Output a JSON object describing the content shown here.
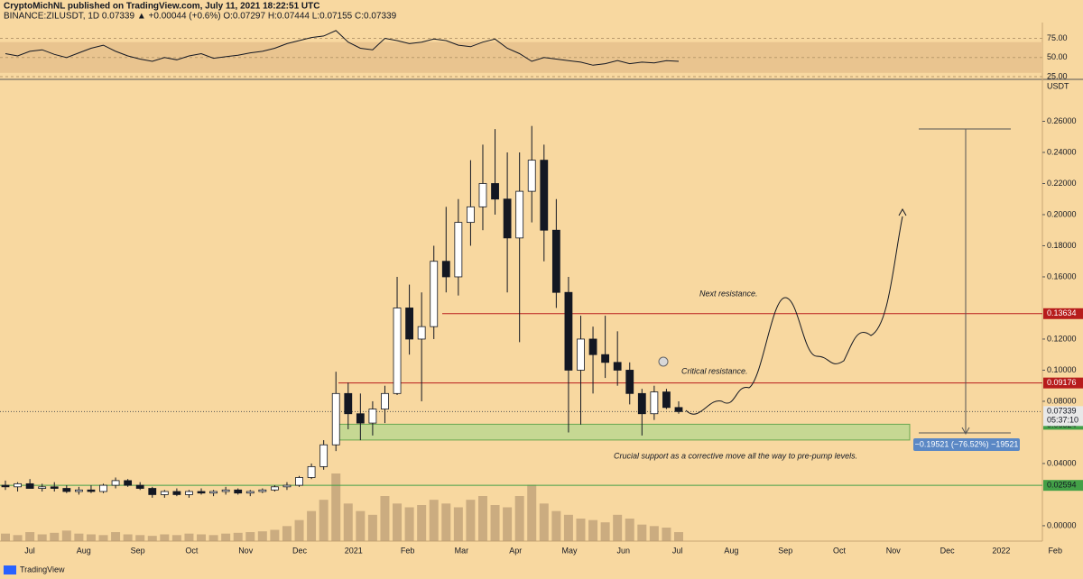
{
  "chart_data": {
    "type": "candlestick",
    "title": "CryptoMichNL published on TradingView.com, July 11, 2021 18:22:51 UTC",
    "subtitle": "BINANCE:ZILUSDT, 1D  0.07339 ▲ +0.00044 (+0.6%) O:0.07297 H:0.07444 L:0.07155 C:0.07339",
    "y_axis_label": "USDT",
    "x_labels": [
      "Jul",
      "Aug",
      "Sep",
      "Oct",
      "Nov",
      "Dec",
      "2021",
      "Feb",
      "Mar",
      "Apr",
      "May",
      "Jun",
      "Jul",
      "Aug",
      "Sep",
      "Oct",
      "Nov",
      "Dec",
      "2022",
      "Feb"
    ],
    "open": [
      0.026,
      0.025,
      0.027,
      0.024,
      0.025,
      0.024,
      0.022,
      0.023,
      0.022,
      0.026,
      0.029,
      0.026,
      0.024,
      0.02,
      0.022,
      0.02,
      0.022,
      0.021,
      0.022,
      0.023,
      0.021,
      0.022,
      0.023,
      0.025,
      0.026,
      0.031,
      0.038,
      0.052,
      0.085,
      0.072,
      0.066,
      0.075,
      0.085,
      0.14,
      0.12,
      0.128,
      0.17,
      0.16,
      0.195,
      0.205,
      0.22,
      0.21,
      0.185,
      0.215,
      0.235,
      0.19,
      0.15,
      0.1,
      0.12,
      0.11,
      0.105,
      0.1,
      0.085,
      0.072,
      0.086,
      0.076
    ],
    "high": [
      0.029,
      0.028,
      0.03,
      0.027,
      0.028,
      0.026,
      0.025,
      0.026,
      0.027,
      0.031,
      0.03,
      0.028,
      0.025,
      0.023,
      0.024,
      0.023,
      0.024,
      0.023,
      0.025,
      0.024,
      0.023,
      0.024,
      0.026,
      0.028,
      0.032,
      0.04,
      0.055,
      0.099,
      0.092,
      0.085,
      0.08,
      0.09,
      0.16,
      0.155,
      0.15,
      0.18,
      0.205,
      0.21,
      0.235,
      0.245,
      0.255,
      0.24,
      0.24,
      0.257,
      0.245,
      0.21,
      0.16,
      0.135,
      0.128,
      0.135,
      0.125,
      0.105,
      0.088,
      0.09,
      0.088,
      0.08
    ],
    "low": [
      0.023,
      0.022,
      0.024,
      0.022,
      0.022,
      0.021,
      0.02,
      0.021,
      0.021,
      0.024,
      0.025,
      0.023,
      0.018,
      0.018,
      0.019,
      0.018,
      0.02,
      0.019,
      0.02,
      0.02,
      0.019,
      0.021,
      0.022,
      0.023,
      0.025,
      0.03,
      0.036,
      0.048,
      0.062,
      0.055,
      0.058,
      0.066,
      0.084,
      0.11,
      0.08,
      0.12,
      0.15,
      0.148,
      0.18,
      0.19,
      0.2,
      0.15,
      0.118,
      0.195,
      0.17,
      0.14,
      0.06,
      0.065,
      0.085,
      0.095,
      0.09,
      0.078,
      0.058,
      0.068,
      0.075,
      0.072
    ],
    "close": [
      0.025,
      0.027,
      0.024,
      0.025,
      0.024,
      0.022,
      0.023,
      0.022,
      0.026,
      0.029,
      0.026,
      0.024,
      0.02,
      0.022,
      0.02,
      0.022,
      0.021,
      0.022,
      0.023,
      0.021,
      0.022,
      0.023,
      0.025,
      0.026,
      0.031,
      0.038,
      0.052,
      0.085,
      0.072,
      0.066,
      0.075,
      0.085,
      0.14,
      0.12,
      0.128,
      0.17,
      0.16,
      0.195,
      0.205,
      0.22,
      0.21,
      0.185,
      0.215,
      0.235,
      0.19,
      0.15,
      0.1,
      0.12,
      0.11,
      0.105,
      0.1,
      0.085,
      0.072,
      0.086,
      0.076,
      0.07339
    ],
    "volume": [
      10,
      8,
      12,
      9,
      11,
      14,
      10,
      9,
      8,
      12,
      9,
      8,
      7,
      9,
      8,
      10,
      9,
      8,
      10,
      11,
      12,
      13,
      15,
      20,
      28,
      40,
      55,
      90,
      50,
      40,
      35,
      60,
      50,
      45,
      48,
      55,
      50,
      45,
      55,
      60,
      48,
      45,
      60,
      75,
      50,
      40,
      35,
      30,
      28,
      25,
      35,
      30,
      22,
      20,
      18,
      12
    ],
    "up_color": "#ffffff",
    "down_color": "#131722",
    "volume_color": "#b89a72",
    "ylim": [
      -0.0099,
      0.2858
    ],
    "yticks": [
      {
        "value": 0.26,
        "label": "0.26000"
      },
      {
        "value": 0.24,
        "label": "0.24000"
      },
      {
        "value": 0.22,
        "label": "0.22000"
      },
      {
        "value": 0.2,
        "label": "0.20000"
      },
      {
        "value": 0.18,
        "label": "0.18000"
      },
      {
        "value": 0.16,
        "label": "0.16000"
      },
      {
        "value": 0.12,
        "label": "0.12000"
      },
      {
        "value": 0.1,
        "label": "0.10000"
      },
      {
        "value": 0.08,
        "label": "0.08000"
      },
      {
        "value": 0.04,
        "label": "0.04000"
      },
      {
        "value": 0,
        "label": "0.00000"
      }
    ],
    "rsi": {
      "values": [
        55,
        52,
        58,
        60,
        54,
        50,
        56,
        62,
        66,
        58,
        52,
        48,
        45,
        50,
        47,
        52,
        55,
        49,
        51,
        53,
        56,
        58,
        62,
        68,
        72,
        76,
        78,
        85,
        70,
        62,
        60,
        75,
        72,
        68,
        70,
        74,
        72,
        66,
        64,
        70,
        74,
        62,
        55,
        45,
        50,
        48,
        46,
        44,
        40,
        42,
        46,
        42,
        44,
        43,
        46,
        45
      ],
      "ylim": [
        22.7,
        95.5
      ],
      "yticks": [
        {
          "value": 75,
          "label": "75.00"
        },
        {
          "value": 50,
          "label": "50.00"
        },
        {
          "value": 25,
          "label": "25.00"
        }
      ],
      "band": [
        30,
        70
      ],
      "color": "#131722"
    },
    "levels": [
      {
        "value": 0.13634,
        "color": "#b71c1c"
      },
      {
        "value": 0.09176,
        "color": "#b71c1c"
      },
      {
        "value": 0.02594,
        "color": "#43a047"
      }
    ],
    "support_zone": {
      "low": 0.0551,
      "high": 0.06524,
      "color": "#b5d88f"
    },
    "current": {
      "value": 0.07339,
      "countdown": "05:37:10"
    },
    "annotations": [
      "Next resistance.",
      "Critical resistance.",
      "Crucial support as a corrective move all the way to pre-pump levels."
    ],
    "measure": "−0.19521 (−76.52%) −19521",
    "footer": "TradingView"
  }
}
